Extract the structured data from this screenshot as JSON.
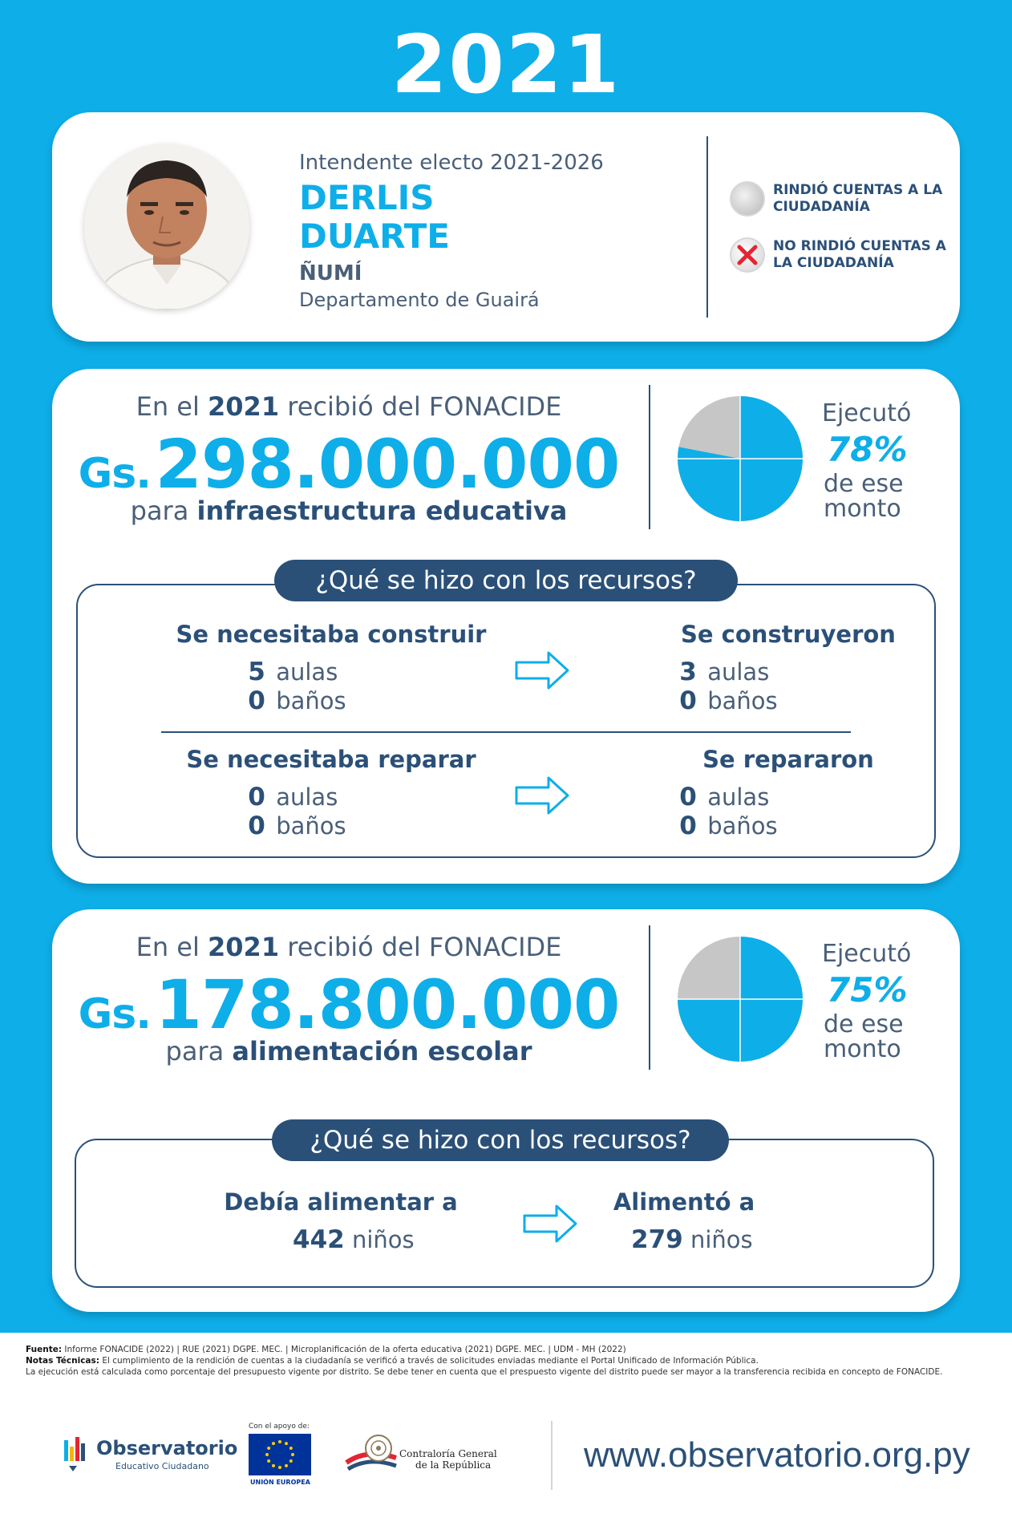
{
  "year": "2021",
  "profile": {
    "role": "Intendente electo 2021-2026",
    "first_name": "DERLIS",
    "last_name": "DUARTE",
    "city": "ÑUMÍ",
    "department": "Departamento de Guairá"
  },
  "legend": {
    "rendido": "RINDIÓ CUENTAS A LA CIUDADANÍA",
    "no_rendido": "NO RINDIÓ CUENTAS A LA CIUDADANÍA",
    "icons": [
      "gray-circle-icon",
      "red-x-circle-icon"
    ]
  },
  "infraestructura": {
    "recibio_pre": "En el ",
    "recibio_year": "2021",
    "recibio_post": " recibió del FONACIDE",
    "currency": "Gs.",
    "amount": "298.000.000",
    "para": "para ",
    "destino": "infraestructura educativa",
    "ejecuto_label": "Ejecutó",
    "ejecuto_pct": "78%",
    "ejecuto_fraction": 0.78,
    "monto_label": "de ese monto",
    "question": "¿Qué se hizo con los recursos?",
    "construir": {
      "needed_title": "Se necesitaba construir",
      "done_title": "Se construyeron",
      "needed": [
        {
          "value": "5",
          "unit": "aulas"
        },
        {
          "value": "0",
          "unit": "baños"
        }
      ],
      "done": [
        {
          "value": "3",
          "unit": "aulas"
        },
        {
          "value": "0",
          "unit": "baños"
        }
      ]
    },
    "reparar": {
      "needed_title": "Se necesitaba reparar",
      "done_title": "Se repararon",
      "needed": [
        {
          "value": "0",
          "unit": "aulas"
        },
        {
          "value": "0",
          "unit": "baños"
        }
      ],
      "done": [
        {
          "value": "0",
          "unit": "aulas"
        },
        {
          "value": "0",
          "unit": "baños"
        }
      ]
    }
  },
  "alimentacion": {
    "recibio_pre": "En el ",
    "recibio_year": "2021",
    "recibio_post": " recibió del FONACIDE",
    "currency": "Gs.",
    "amount": "178.800.000",
    "para": "para ",
    "destino": "alimentación escolar",
    "ejecuto_label": "Ejecutó",
    "ejecuto_pct": "75%",
    "ejecuto_fraction": 0.75,
    "monto_label": "de ese monto",
    "question": "¿Qué se hizo con los recursos?",
    "needed_title": "Debía alimentar a",
    "done_title": "Alimentó a",
    "needed_value": "442",
    "done_value": "279",
    "unit": "niños"
  },
  "footer": {
    "fuente_label": "Fuente:",
    "fuente": "Informe FONACIDE (2022) | RUE (2021) DGPE. MEC. | Microplanificación de la oferta educativa (2021) DGPE. MEC. | UDM - MH (2022)",
    "notas_label": "Notas Técnicas:",
    "notas1": "El cumplimiento de la rendición de cuentas a la ciudadanía se verificó a través de solicitudes enviadas mediante el Portal Unificado de Información Pública.",
    "notas2": "La ejecución está calculada como porcentaje del presupuesto vigente por distrito. Se debe tener en cuenta que el prespuesto vigente del distrito puede ser mayor a la transferencia recibida en concepto de FONACIDE.",
    "obs_name": "Observatorio",
    "obs_sub": "Educativo Ciudadano",
    "eu_caption": "Con el apoyo de:",
    "eu_label": "UNIÓN EUROPEA",
    "cgr_line1": "Contraloría General",
    "cgr_line2": "de la República",
    "url": "www.observatorio.org.py"
  },
  "colors": {
    "primary_blue": "#0eaee9",
    "navy": "#2b5078",
    "gray": "#c6c6c6",
    "red": "#e52532"
  }
}
